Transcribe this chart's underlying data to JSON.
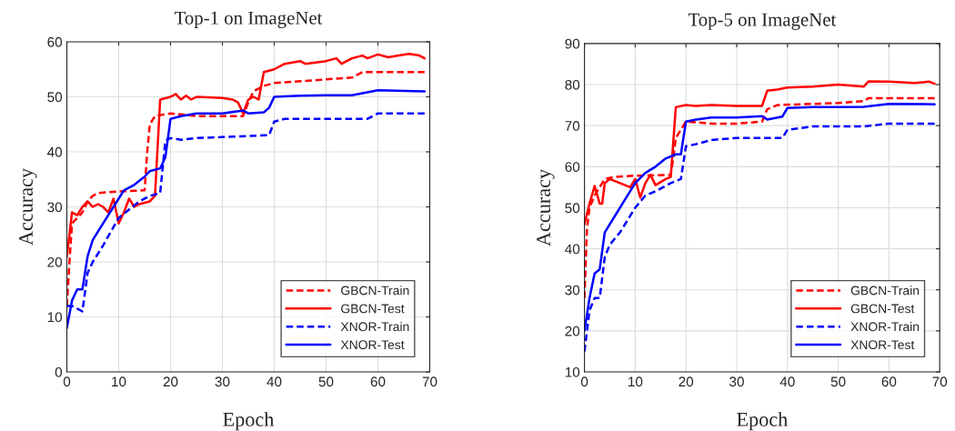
{
  "chart_data": [
    {
      "type": "line",
      "title": "Top-1 on ImageNet",
      "xlabel": "Epoch",
      "ylabel": "Accuracy",
      "xlim": [
        0,
        70
      ],
      "ylim": [
        0,
        60
      ],
      "xticks": [
        0,
        10,
        20,
        30,
        40,
        50,
        60,
        70
      ],
      "yticks": [
        0,
        10,
        20,
        30,
        40,
        50,
        60
      ],
      "grid": true,
      "legend": "bottom right",
      "series": [
        {
          "name": "GBCN-Train",
          "color": "#ff0000",
          "line_style": "dashed",
          "x": [
            0,
            0.5,
            1,
            2,
            3,
            4,
            5,
            6,
            8,
            15,
            15.5,
            16,
            17,
            20,
            25,
            34,
            35,
            36,
            38,
            40,
            55,
            57,
            69
          ],
          "values": [
            12,
            20,
            27,
            28,
            29,
            31,
            32,
            32.5,
            32.7,
            33,
            40,
            45,
            46.5,
            47,
            46.5,
            46.5,
            49,
            51,
            52,
            52.5,
            53.5,
            54.5,
            54.5
          ]
        },
        {
          "name": "GBCN-Test",
          "color": "#ff0000",
          "line_style": "solid",
          "x": [
            0,
            0.5,
            1,
            2,
            3,
            4,
            5,
            6,
            7,
            8,
            9,
            10,
            11,
            12,
            13,
            14,
            16,
            17,
            18,
            20,
            21,
            22,
            23,
            24,
            25,
            30,
            32,
            33,
            34,
            35,
            36,
            37,
            38,
            40,
            42,
            45,
            46,
            50,
            52,
            53,
            55,
            57,
            58,
            60,
            62,
            64,
            66,
            68,
            69
          ],
          "values": [
            21,
            25,
            29,
            28.5,
            30,
            31,
            30,
            30.5,
            30,
            29,
            31.5,
            27,
            29,
            31.5,
            30,
            30.5,
            31,
            32,
            49.5,
            50,
            50.5,
            49.5,
            50.2,
            49.5,
            50,
            49.8,
            49.5,
            49,
            47,
            49.5,
            50,
            49.5,
            54.5,
            55,
            56,
            56.5,
            56,
            56.5,
            57,
            56,
            57,
            57.5,
            57,
            57.7,
            57.2,
            57.5,
            57.8,
            57.5,
            57
          ]
        },
        {
          "name": "XNOR-Train",
          "color": "#0000ff",
          "line_style": "dashed",
          "x": [
            0,
            1,
            2,
            3,
            4,
            5,
            7,
            10,
            12,
            14,
            16,
            18,
            19,
            20,
            22,
            25,
            38,
            39,
            40,
            42,
            50,
            58,
            60,
            69
          ],
          "values": [
            12,
            12,
            11.5,
            11,
            18,
            20,
            23,
            28,
            29.5,
            31,
            32,
            32.5,
            42,
            42.5,
            42.2,
            42.5,
            43,
            43,
            45.5,
            46,
            46,
            46,
            47,
            47
          ]
        },
        {
          "name": "XNOR-Test",
          "color": "#0000ff",
          "line_style": "solid",
          "x": [
            0,
            1,
            2,
            3,
            4,
            5,
            7,
            9,
            11,
            13,
            15,
            16,
            18,
            19,
            20,
            22,
            25,
            30,
            34,
            35,
            38,
            39,
            40,
            45,
            50,
            55,
            60,
            69
          ],
          "values": [
            8,
            13,
            15,
            15,
            21,
            24,
            27,
            30,
            33,
            34,
            35.5,
            36.5,
            37,
            39,
            46,
            46.5,
            47,
            47,
            47.5,
            47,
            47.2,
            48,
            50,
            50.2,
            50.3,
            50.3,
            51.2,
            51
          ]
        }
      ]
    },
    {
      "type": "line",
      "title": "Top-5 on ImageNet",
      "xlabel": "Epoch",
      "ylabel": "Accuracy",
      "xlim": [
        0,
        70
      ],
      "ylim": [
        10,
        90
      ],
      "xticks": [
        0,
        10,
        20,
        30,
        40,
        50,
        60,
        70
      ],
      "yticks": [
        10,
        20,
        30,
        40,
        50,
        60,
        70,
        80,
        90
      ],
      "grid": true,
      "legend": "bottom right",
      "series": [
        {
          "name": "GBCN-Train",
          "color": "#ff0000",
          "line_style": "dashed",
          "x": [
            0,
            0.5,
            1,
            2,
            3,
            4,
            6,
            10,
            17,
            17.5,
            18,
            19,
            20,
            25,
            30,
            35,
            36,
            38,
            50,
            55,
            56,
            69
          ],
          "values": [
            28,
            45,
            50,
            53,
            55,
            57,
            57.5,
            57.8,
            58,
            62,
            67,
            69,
            71,
            70.5,
            70.5,
            71,
            74,
            75,
            75.5,
            76,
            76.7,
            76.7
          ]
        },
        {
          "name": "GBCN-Test",
          "color": "#ff0000",
          "line_style": "solid",
          "x": [
            0,
            1,
            2,
            3,
            3.5,
            4,
            5,
            7,
            9,
            10,
            11,
            12,
            13,
            14,
            16,
            17,
            18,
            20,
            22,
            25,
            30,
            35,
            36,
            38,
            40,
            45,
            50,
            55,
            56,
            60,
            65,
            68,
            69
          ],
          "values": [
            46,
            51,
            55.3,
            51,
            51,
            56,
            57,
            56,
            55,
            57,
            52.5,
            56,
            58,
            55.5,
            57,
            57.5,
            74.5,
            75,
            74.8,
            75,
            74.8,
            74.8,
            78.5,
            78.8,
            79.3,
            79.5,
            80,
            79.5,
            80.8,
            80.7,
            80.4,
            80.7,
            80.2
          ]
        },
        {
          "name": "XNOR-Train",
          "color": "#0000ff",
          "line_style": "dashed",
          "x": [
            0,
            1,
            2,
            3,
            4,
            5,
            7,
            10,
            12,
            14,
            17,
            19,
            20,
            22,
            25,
            30,
            39,
            40,
            45,
            55,
            60,
            69
          ],
          "values": [
            15,
            25,
            28,
            28,
            38,
            41,
            44,
            50,
            53,
            54,
            56,
            57,
            65,
            65.5,
            66.5,
            67,
            67,
            69,
            69.8,
            69.8,
            70.5,
            70.5
          ]
        },
        {
          "name": "XNOR-Test",
          "color": "#0000ff",
          "line_style": "solid",
          "x": [
            0,
            1,
            2,
            3,
            4,
            6,
            8,
            10,
            12,
            14,
            16,
            18,
            19,
            20,
            22,
            25,
            30,
            35,
            36,
            39,
            40,
            45,
            55,
            60,
            69
          ],
          "values": [
            20,
            28,
            34,
            35,
            44,
            48,
            52,
            56,
            58.5,
            60,
            62,
            63,
            63,
            71,
            71.5,
            72,
            72,
            72.3,
            71.5,
            72.2,
            74.3,
            74.5,
            74.6,
            75.3,
            75.2
          ]
        }
      ]
    }
  ]
}
